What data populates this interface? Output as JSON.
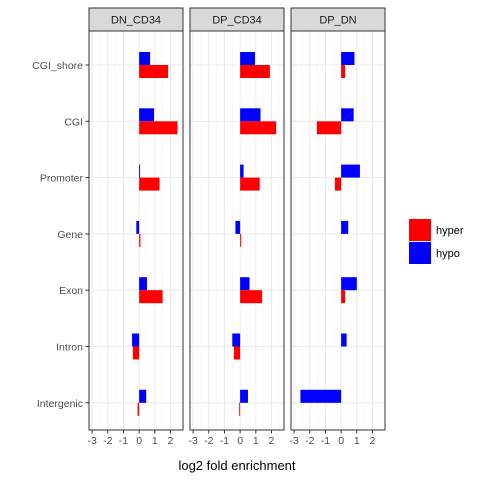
{
  "chart_data": {
    "type": "bar",
    "orientation": "horizontal",
    "facets": [
      "DN_CD34",
      "DP_CD34",
      "DP_DN"
    ],
    "categories": [
      "CGI_shore",
      "CGI",
      "Promoter",
      "Gene",
      "Exon",
      "Intron",
      "Intergenic"
    ],
    "xlabel": "log2 fold enrichment",
    "xlim": [
      -3.2,
      2.8
    ],
    "xticks": [
      -3,
      -2,
      -1,
      0,
      1,
      2
    ],
    "xtick_labels": [
      "-3",
      "-2",
      "-1",
      "0",
      "1",
      "2"
    ],
    "grid": true,
    "legend": {
      "position": "right",
      "entries": [
        {
          "name": "hyper",
          "color": "#ff0000"
        },
        {
          "name": "hypo",
          "color": "#0000ff"
        }
      ]
    },
    "series": [
      {
        "name": "hyper",
        "color": "#ff0000",
        "values": {
          "DN_CD34": [
            1.85,
            2.45,
            1.3,
            0.08,
            1.5,
            -0.4,
            -0.1
          ],
          "DP_CD34": [
            1.9,
            2.3,
            1.25,
            0.07,
            1.4,
            -0.4,
            -0.06
          ],
          "DP_DN": [
            0.25,
            -1.55,
            -0.4,
            0.0,
            0.25,
            0.0,
            0.0
          ]
        }
      },
      {
        "name": "hypo",
        "color": "#0000ff",
        "values": {
          "DN_CD34": [
            0.7,
            0.95,
            0.06,
            -0.18,
            0.5,
            -0.45,
            0.45
          ],
          "DP_CD34": [
            0.95,
            1.3,
            0.22,
            -0.3,
            0.6,
            -0.5,
            0.5
          ],
          "DP_DN": [
            0.85,
            0.8,
            1.2,
            0.45,
            1.0,
            0.35,
            -2.6
          ]
        }
      }
    ]
  }
}
